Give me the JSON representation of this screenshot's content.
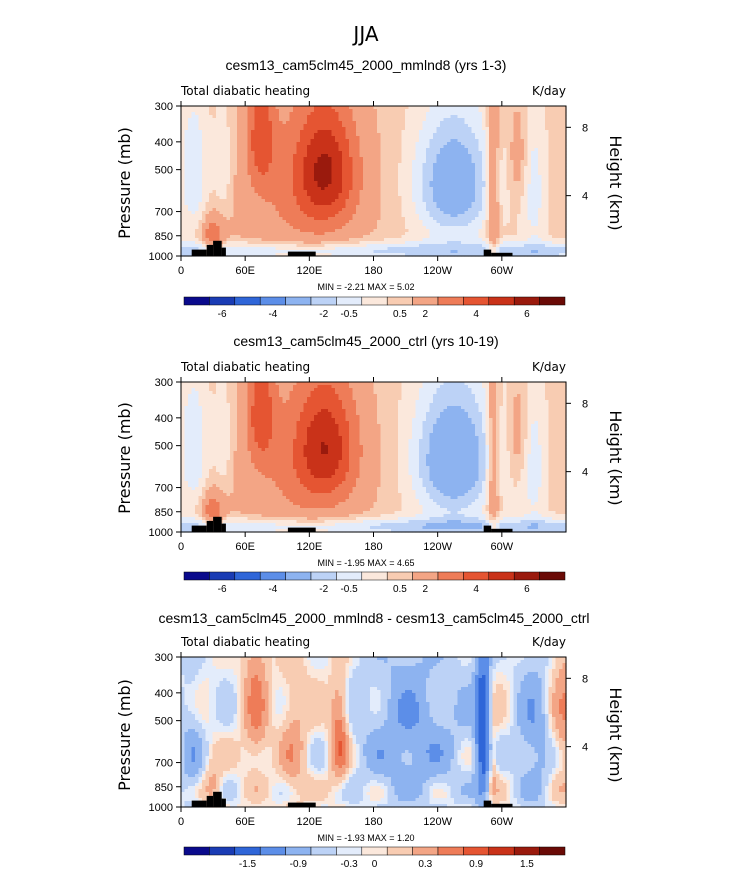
{
  "figure_title": "JJA",
  "colors": {
    "div": [
      "#0a0a8c",
      "#1a3cb4",
      "#2f66d8",
      "#5c8ee8",
      "#8db3f0",
      "#bcd2f6",
      "#e3ecfb",
      "#fbe8dc",
      "#f8ccb2",
      "#f3a585",
      "#ee7c58",
      "#e55532",
      "#c93219",
      "#9a1a0d",
      "#6a0a06"
    ]
  },
  "chart_data": [
    {
      "type": "heatmap",
      "title": "cesm13_cam5clm45_2000_mmlnd8 (yrs 1-3)",
      "left_label": "Total diabatic heating",
      "right_label": "K/day",
      "ylabel": "Pressure (mb)",
      "ylabel_right": "Height (km)",
      "xticks": [
        "0",
        "60E",
        "120E",
        "180",
        "120W",
        "60W"
      ],
      "yticks": [
        "300",
        "400",
        "500",
        "700",
        "850",
        "1000"
      ],
      "yticks_right": [
        "8",
        "4"
      ],
      "minmax": "MIN =   -2.21   MAX =    5.02",
      "colorbar_labels": [
        "-6",
        "-4",
        "-2",
        "-0.5",
        "0.5",
        "2",
        "4",
        "6"
      ],
      "field": "abs"
    },
    {
      "type": "heatmap",
      "title": "cesm13_cam5clm45_2000_ctrl (yrs 10-19)",
      "left_label": "Total diabatic heating",
      "right_label": "K/day",
      "ylabel": "Pressure (mb)",
      "ylabel_right": "Height (km)",
      "xticks": [
        "0",
        "60E",
        "120E",
        "180",
        "120W",
        "60W"
      ],
      "yticks": [
        "300",
        "400",
        "500",
        "700",
        "850",
        "1000"
      ],
      "yticks_right": [
        "8",
        "4"
      ],
      "minmax": "MIN =   -1.95   MAX =    4.65",
      "colorbar_labels": [
        "-6",
        "-4",
        "-2",
        "-0.5",
        "0.5",
        "2",
        "4",
        "6"
      ],
      "field": "abs2"
    },
    {
      "type": "heatmap",
      "title": "cesm13_cam5clm45_2000_mmlnd8 - cesm13_cam5clm45_2000_ctrl",
      "left_label": "Total diabatic heating",
      "right_label": "K/day",
      "ylabel": "Pressure (mb)",
      "ylabel_right": "Height (km)",
      "xticks": [
        "0",
        "60E",
        "120E",
        "180",
        "120W",
        "60W"
      ],
      "yticks": [
        "300",
        "400",
        "500",
        "700",
        "850",
        "1000"
      ],
      "yticks_right": [
        "8",
        "4"
      ],
      "minmax": "MIN =   -1.93   MAX =    1.20",
      "colorbar_labels": [
        "-1.5",
        "-0.9",
        "-0.3",
        "0",
        "0.3",
        "0.9",
        "1.5"
      ],
      "field": "diff"
    }
  ]
}
